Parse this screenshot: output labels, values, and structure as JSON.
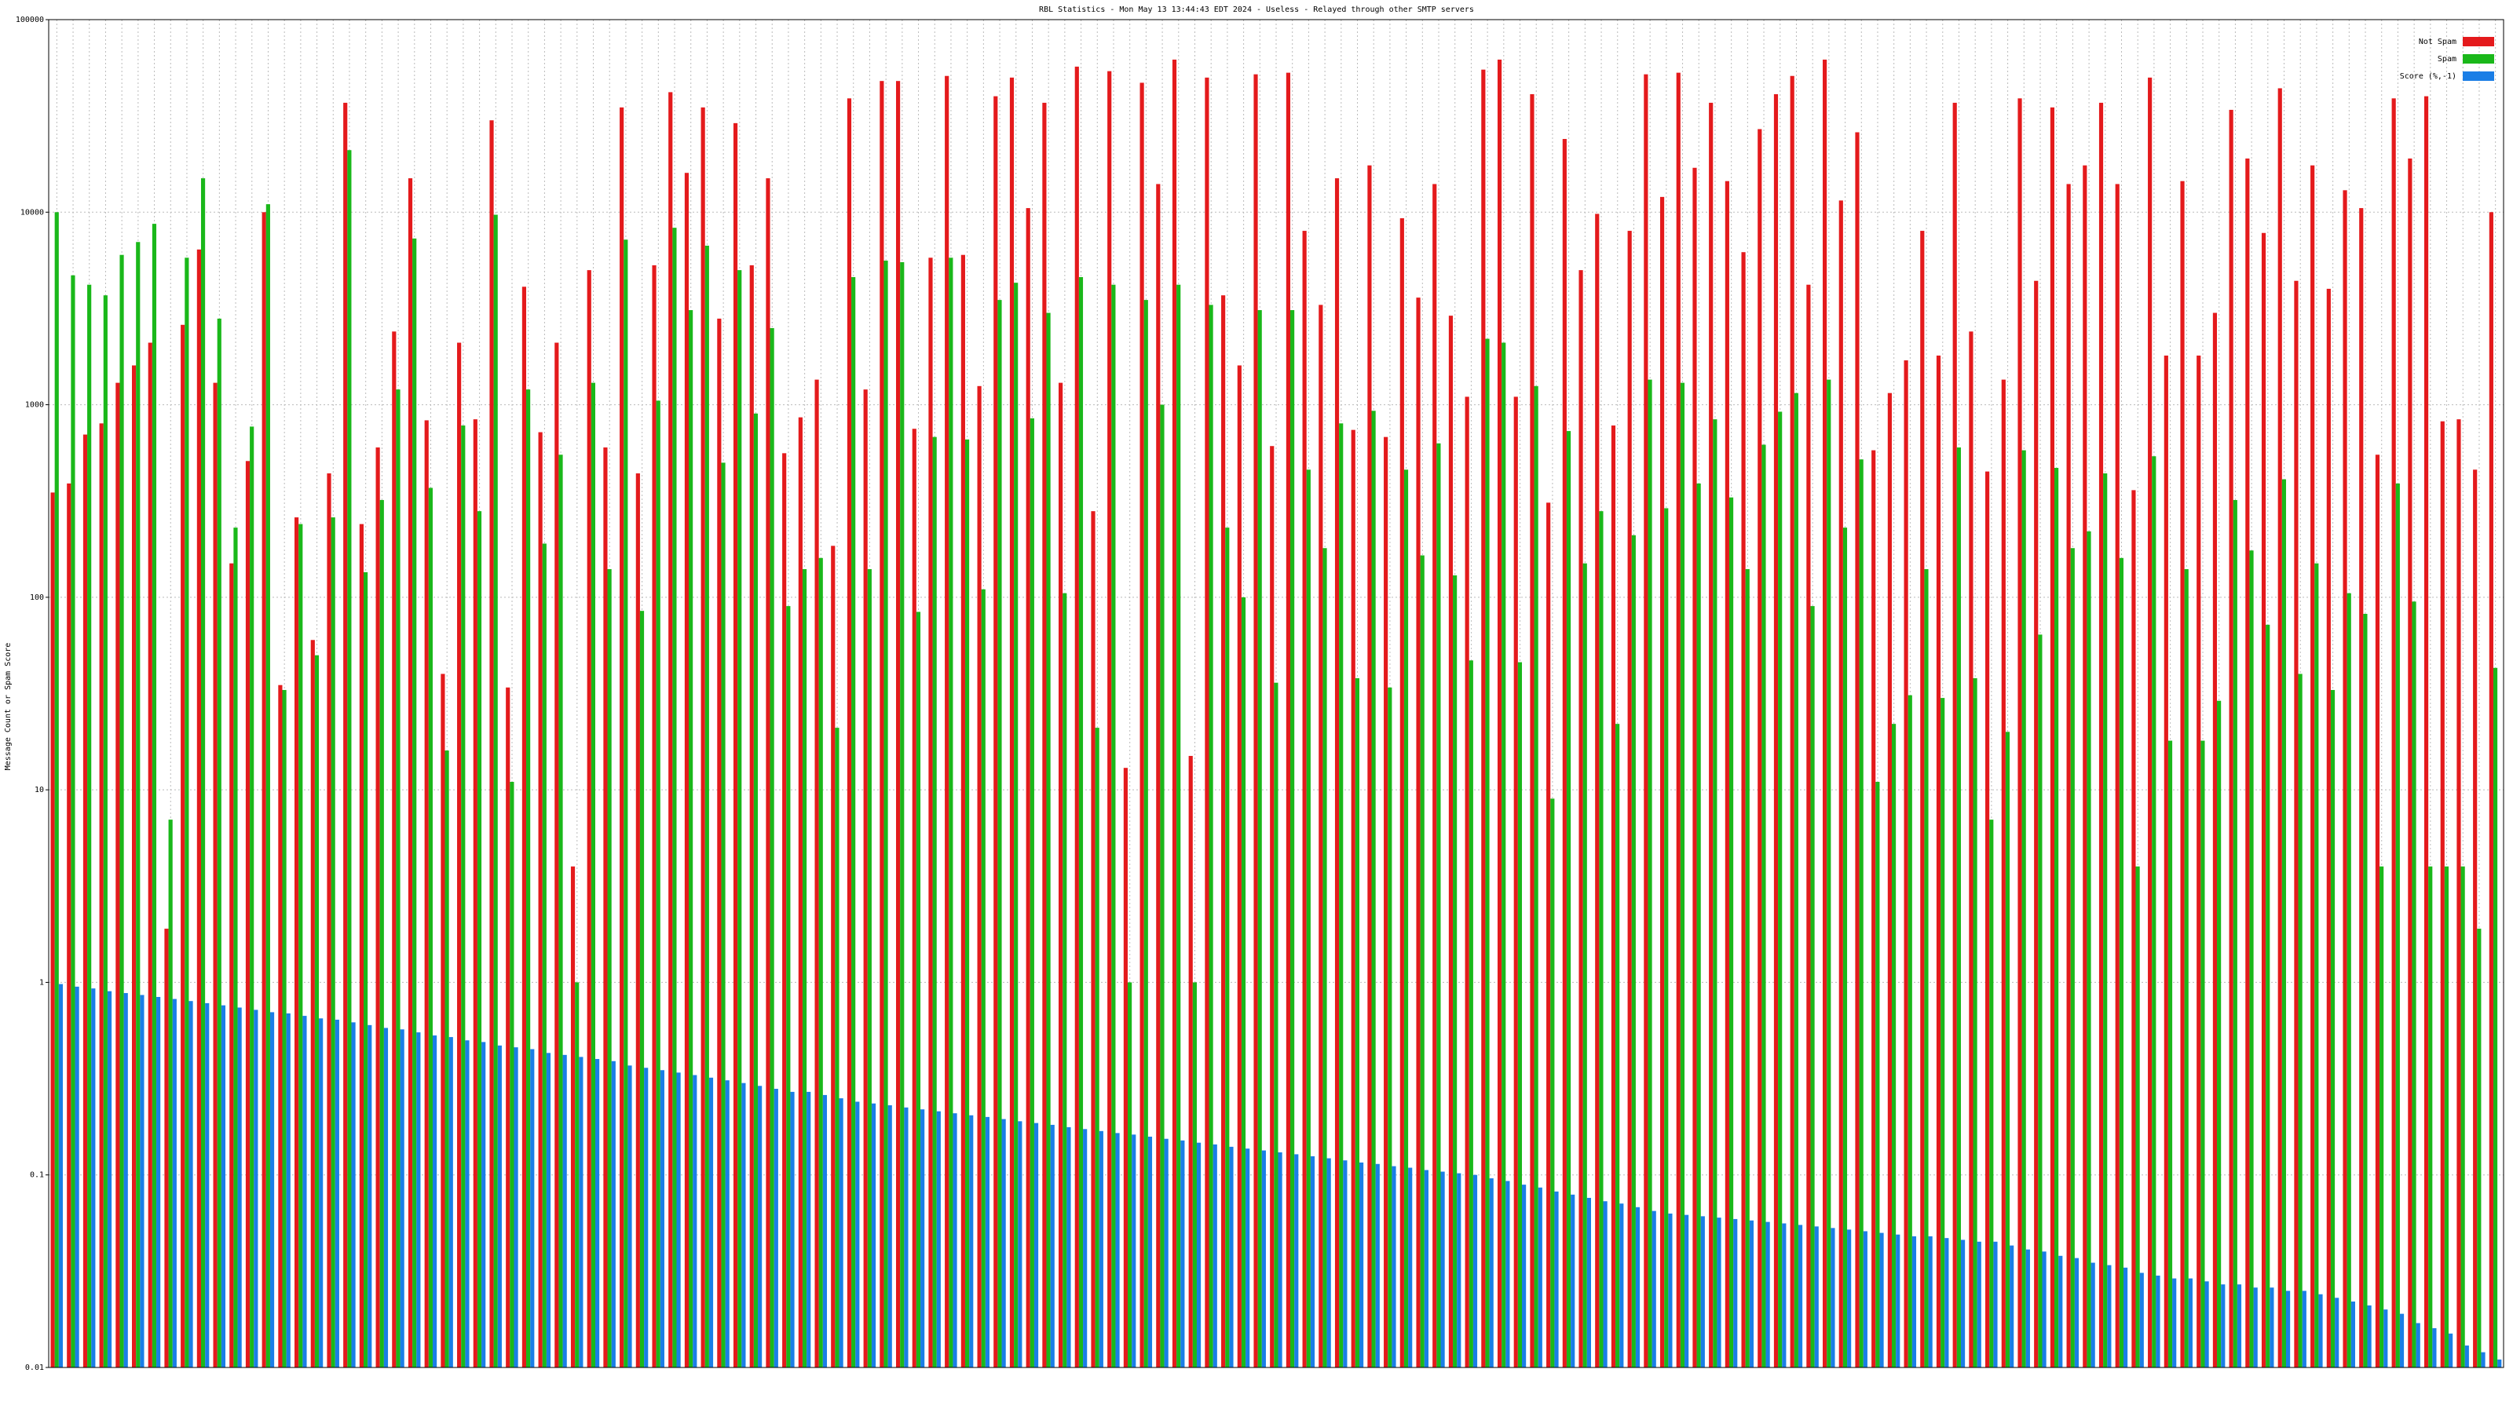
{
  "chart_data": {
    "type": "bar",
    "title": "RBL Statistics - Mon May 13 13:44:43 EDT 2024 - Useless - Relayed through other SMTP servers",
    "ylabel": "Message Count or Spam Score",
    "log_scale": true,
    "grid": true,
    "legend": "top-right",
    "ylim": [
      0.01,
      100000
    ],
    "yticks": [
      0.01,
      0.1,
      1,
      10,
      100,
      1000,
      10000,
      100000
    ],
    "categories": [
      null,
      null,
      null,
      null,
      null,
      null,
      null,
      null,
      null,
      null,
      null,
      null,
      null,
      null,
      null,
      null,
      null,
      null,
      null,
      null,
      null,
      null,
      null,
      null,
      null,
      null,
      null,
      null,
      null,
      null,
      null,
      null,
      null,
      null,
      null,
      null,
      null,
      null,
      null,
      null,
      null,
      null,
      null,
      null,
      null,
      null,
      null,
      null,
      null,
      null,
      null,
      null,
      null,
      null,
      null,
      null,
      null,
      null,
      null,
      null,
      null,
      null,
      null,
      null,
      null,
      null,
      null,
      null,
      null,
      null,
      null,
      null,
      null,
      null,
      null,
      null,
      null,
      null,
      null,
      null,
      null,
      null,
      null,
      null,
      null,
      null,
      null,
      null,
      null,
      null,
      null,
      null,
      null,
      null,
      null,
      null,
      null,
      null,
      null,
      null,
      null,
      null,
      null,
      null,
      null,
      null,
      null,
      null,
      null,
      null,
      null,
      null,
      null,
      null,
      null,
      null,
      null,
      null,
      null,
      null,
      null,
      null,
      null,
      null,
      null,
      null,
      null,
      null,
      null,
      null,
      null,
      null,
      null,
      null,
      null,
      null,
      null,
      null,
      null,
      null,
      null,
      null,
      null,
      null,
      null,
      null,
      null,
      null,
      null,
      null,
      null
    ],
    "series": [
      {
        "name": "Not Spam",
        "color": "#e41a1c",
        "values": [
          350,
          390,
          700,
          800,
          1300,
          1600,
          2100,
          1.9,
          2600,
          6400,
          1300,
          150,
          510,
          10000,
          35,
          260,
          60,
          440,
          37000,
          240,
          600,
          2400,
          15000,
          830,
          40,
          2100,
          840,
          30000,
          34,
          4100,
          720,
          2100,
          4,
          5000,
          600,
          35000,
          440,
          5300,
          42000,
          16000,
          35000,
          2800,
          29000,
          5300,
          15000,
          560,
          860,
          1350,
          185,
          39000,
          1200,
          48000,
          48000,
          750,
          5800,
          51000,
          6000,
          1250,
          40000,
          50000,
          10500,
          37000,
          1300,
          57000,
          280,
          54000,
          13,
          47000,
          14000,
          62000,
          15,
          50000,
          3700,
          1600,
          52000,
          610,
          53000,
          8000,
          3300,
          15000,
          740,
          17500,
          680,
          9300,
          3600,
          14000,
          2900,
          1100,
          55000,
          62000,
          1100,
          41000,
          310,
          24000,
          5000,
          9800,
          780,
          8000,
          52000,
          12000,
          53000,
          17000,
          37000,
          14500,
          6200,
          27000,
          41000,
          51000,
          4200,
          62000,
          11500,
          26000,
          580,
          1150,
          1700,
          8000,
          1800,
          37000,
          2400,
          450,
          1350,
          39000,
          4400,
          35000,
          14000,
          17500,
          37000,
          14000,
          360,
          50000,
          1800,
          14500,
          1800,
          3000,
          34000,
          19000,
          7800,
          44000,
          4400,
          17500,
          4000,
          13000,
          10500,
          550,
          39000,
          19000,
          40000,
          820,
          840,
          460,
          10000
        ]
      },
      {
        "name": "Spam",
        "color": "#1ab81a",
        "values": [
          10000,
          4700,
          4200,
          3700,
          6000,
          7000,
          8700,
          7,
          5800,
          15000,
          2800,
          230,
          770,
          11000,
          33,
          240,
          50,
          260,
          21000,
          135,
          320,
          1200,
          7300,
          370,
          16,
          780,
          280,
          9700,
          11,
          1200,
          190,
          550,
          1,
          1300,
          140,
          7200,
          85,
          1050,
          8300,
          3100,
          6700,
          500,
          5000,
          900,
          2500,
          90,
          140,
          160,
          21,
          4600,
          140,
          5600,
          5500,
          84,
          680,
          5800,
          660,
          110,
          3500,
          4300,
          850,
          3000,
          105,
          4600,
          21,
          4200,
          1,
          3500,
          1000,
          4200,
          1,
          3300,
          230,
          100,
          3100,
          36,
          3100,
          460,
          180,
          800,
          38,
          930,
          34,
          460,
          165,
          630,
          130,
          47,
          2200,
          2100,
          46,
          1250,
          9,
          730,
          150,
          280,
          22,
          210,
          1350,
          290,
          1300,
          390,
          840,
          330,
          140,
          620,
          920,
          1150,
          90,
          1350,
          230,
          520,
          11,
          22,
          31,
          140,
          30,
          600,
          38,
          7,
          20,
          580,
          64,
          470,
          180,
          220,
          440,
          160,
          4,
          540,
          18,
          140,
          18,
          29,
          320,
          175,
          72,
          410,
          40,
          150,
          33,
          105,
          82,
          4,
          390,
          95,
          4,
          4,
          4,
          1.9,
          43
        ]
      },
      {
        "name": "Score (%,-1)",
        "color": "#1a7ee6",
        "values": [
          0.98,
          0.95,
          0.93,
          0.9,
          0.88,
          0.86,
          0.84,
          0.82,
          0.8,
          0.78,
          0.76,
          0.74,
          0.72,
          0.7,
          0.69,
          0.67,
          0.65,
          0.64,
          0.62,
          0.6,
          0.58,
          0.57,
          0.55,
          0.53,
          0.52,
          0.5,
          0.49,
          0.47,
          0.46,
          0.45,
          0.43,
          0.42,
          0.41,
          0.4,
          0.39,
          0.37,
          0.36,
          0.35,
          0.34,
          0.33,
          0.32,
          0.31,
          0.3,
          0.29,
          0.28,
          0.27,
          0.27,
          0.26,
          0.25,
          0.24,
          0.235,
          0.23,
          0.224,
          0.219,
          0.214,
          0.209,
          0.204,
          0.2,
          0.195,
          0.19,
          0.186,
          0.182,
          0.177,
          0.173,
          0.169,
          0.165,
          0.162,
          0.158,
          0.154,
          0.151,
          0.147,
          0.144,
          0.14,
          0.137,
          0.134,
          0.131,
          0.128,
          0.125,
          0.122,
          0.119,
          0.116,
          0.114,
          0.111,
          0.109,
          0.106,
          0.104,
          0.102,
          0.1,
          0.096,
          0.093,
          0.089,
          0.086,
          0.082,
          0.079,
          0.076,
          0.073,
          0.071,
          0.068,
          0.065,
          0.063,
          0.062,
          0.061,
          0.06,
          0.059,
          0.058,
          0.057,
          0.056,
          0.055,
          0.054,
          0.053,
          0.052,
          0.051,
          0.05,
          0.049,
          0.048,
          0.048,
          0.047,
          0.046,
          0.045,
          0.045,
          0.043,
          0.041,
          0.04,
          0.038,
          0.037,
          0.035,
          0.034,
          0.033,
          0.031,
          0.03,
          0.029,
          0.029,
          0.028,
          0.027,
          0.027,
          0.026,
          0.026,
          0.025,
          0.025,
          0.024,
          0.023,
          0.022,
          0.021,
          0.02,
          0.019,
          0.017,
          0.016,
          0.015,
          0.013,
          0.012,
          0.011
        ]
      }
    ]
  }
}
